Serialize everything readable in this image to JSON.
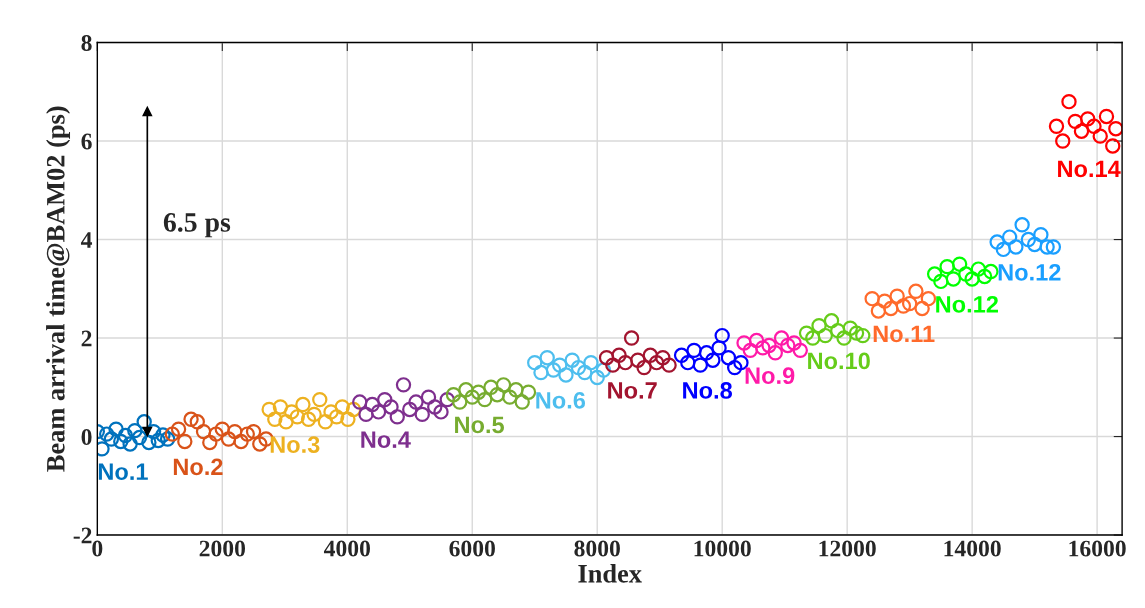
{
  "chart_data": {
    "type": "scatter",
    "xlabel": "Index",
    "ylabel": "Beam arrival time@BAM02 (ps)",
    "xlim": [
      0,
      16400
    ],
    "ylim": [
      -2,
      8
    ],
    "xticks": [
      0,
      2000,
      4000,
      6000,
      8000,
      10000,
      12000,
      14000,
      16000
    ],
    "yticks": [
      -2,
      0,
      2,
      4,
      6,
      8
    ],
    "grid": true,
    "marker": "circle",
    "annotations": [
      "6.5 ps"
    ],
    "series": [
      {
        "name": "No.1",
        "color": "#0072bd",
        "x": [
          0,
          75,
          150,
          225,
          300,
          375,
          450,
          525,
          600,
          675,
          750,
          825,
          900,
          975,
          1050,
          1125
        ],
        "values": [
          0.1,
          -0.25,
          0.05,
          -0.05,
          0.15,
          -0.1,
          0.02,
          -0.15,
          0.12,
          -0.02,
          0.3,
          -0.12,
          0.1,
          -0.08,
          0.03,
          -0.05
        ]
      },
      {
        "name": "No.2",
        "color": "#d95319",
        "x": [
          1200,
          1300,
          1400,
          1500,
          1600,
          1700,
          1800,
          1900,
          2000,
          2100,
          2200,
          2300,
          2400,
          2500,
          2600,
          2700
        ],
        "values": [
          0.05,
          0.15,
          -0.1,
          0.35,
          0.3,
          0.1,
          -0.12,
          0.05,
          0.15,
          -0.05,
          0.1,
          -0.1,
          0.05,
          0.1,
          -0.15,
          -0.05
        ]
      },
      {
        "name": "No.3",
        "color": "#edb120",
        "x": [
          2750,
          2840,
          2930,
          3020,
          3110,
          3200,
          3290,
          3380,
          3470,
          3560,
          3650,
          3740,
          3830,
          3920,
          4010,
          4100
        ],
        "values": [
          0.55,
          0.35,
          0.6,
          0.3,
          0.5,
          0.4,
          0.65,
          0.35,
          0.45,
          0.75,
          0.3,
          0.5,
          0.4,
          0.6,
          0.35,
          0.55
        ]
      },
      {
        "name": "No.4",
        "color": "#7e2f8e",
        "x": [
          4200,
          4300,
          4400,
          4500,
          4600,
          4700,
          4800,
          4900,
          5000,
          5100,
          5200,
          5300,
          5400,
          5500,
          5600
        ],
        "values": [
          0.7,
          0.45,
          0.65,
          0.5,
          0.75,
          0.6,
          0.4,
          1.05,
          0.55,
          0.7,
          0.45,
          0.8,
          0.6,
          0.5,
          0.75
        ]
      },
      {
        "name": "No.5",
        "color": "#77ac30",
        "x": [
          5700,
          5800,
          5900,
          6000,
          6100,
          6200,
          6300,
          6400,
          6500,
          6600,
          6700,
          6800,
          6900
        ],
        "values": [
          0.85,
          0.7,
          0.95,
          0.8,
          0.9,
          0.75,
          1.0,
          0.85,
          1.05,
          0.8,
          0.95,
          0.7,
          0.9
        ]
      },
      {
        "name": "No.6",
        "color": "#4dbeee",
        "x": [
          7000,
          7100,
          7200,
          7300,
          7400,
          7500,
          7600,
          7700,
          7800,
          7900,
          8000,
          8100
        ],
        "values": [
          1.5,
          1.3,
          1.6,
          1.35,
          1.45,
          1.25,
          1.55,
          1.4,
          1.3,
          1.5,
          1.2,
          1.35
        ]
      },
      {
        "name": "No.7",
        "color": "#a2142f",
        "x": [
          8150,
          8250,
          8350,
          8450,
          8550,
          8650,
          8750,
          8850,
          8950,
          9050,
          9150
        ],
        "values": [
          1.6,
          1.45,
          1.65,
          1.5,
          2.0,
          1.55,
          1.4,
          1.65,
          1.5,
          1.6,
          1.45
        ]
      },
      {
        "name": "No.8",
        "color": "#0000ff",
        "x": [
          9350,
          9450,
          9550,
          9650,
          9750,
          9850,
          9950,
          10000,
          10100,
          10200,
          10300
        ],
        "values": [
          1.65,
          1.5,
          1.75,
          1.45,
          1.7,
          1.55,
          1.8,
          2.05,
          1.6,
          1.4,
          1.5
        ]
      },
      {
        "name": "No.9",
        "color": "#ff1aa8",
        "x": [
          10350,
          10450,
          10550,
          10650,
          10750,
          10850,
          10950,
          11050,
          11150,
          11250
        ],
        "values": [
          1.9,
          1.75,
          1.95,
          1.8,
          1.85,
          1.7,
          2.0,
          1.85,
          1.9,
          1.75
        ]
      },
      {
        "name": "No.10",
        "color": "#66cc1a",
        "x": [
          11350,
          11450,
          11550,
          11650,
          11750,
          11850,
          11950,
          12050,
          12150,
          12250
        ],
        "values": [
          2.1,
          2.0,
          2.25,
          2.05,
          2.35,
          2.15,
          2.0,
          2.2,
          2.1,
          2.05
        ]
      },
      {
        "name": "No.11",
        "color": "#ff6a2b",
        "x": [
          12400,
          12500,
          12600,
          12700,
          12800,
          12900,
          13000,
          13100,
          13200,
          13300
        ],
        "values": [
          2.8,
          2.55,
          2.75,
          2.6,
          2.85,
          2.65,
          2.7,
          2.95,
          2.6,
          2.8
        ]
      },
      {
        "name": "No.12",
        "color": "#00ff00",
        "x": [
          13400,
          13500,
          13600,
          13700,
          13800,
          13900,
          14000,
          14100,
          14200,
          14300
        ],
        "values": [
          3.3,
          3.15,
          3.45,
          3.2,
          3.5,
          3.3,
          3.2,
          3.4,
          3.25,
          3.35
        ]
      },
      {
        "name": "No.12",
        "color": "#1a9fff",
        "x": [
          14400,
          14500,
          14600,
          14700,
          14800,
          14900,
          15000,
          15100,
          15200,
          15300
        ],
        "values": [
          3.95,
          3.8,
          4.05,
          3.85,
          4.3,
          4.0,
          3.9,
          4.1,
          3.85,
          3.85
        ]
      },
      {
        "name": "No.14",
        "color": "#ff0000",
        "x": [
          15350,
          15450,
          15550,
          15650,
          15750,
          15850,
          15950,
          16050,
          16150,
          16250,
          16300
        ],
        "values": [
          6.3,
          6.0,
          6.8,
          6.4,
          6.2,
          6.45,
          6.3,
          6.1,
          6.5,
          5.9,
          6.25
        ]
      },
      {
        "type": "line",
        "color": "#000000",
        "marker": "triangle",
        "x": [
          800,
          800
        ],
        "values": [
          0.1,
          6.6
        ]
      }
    ]
  }
}
